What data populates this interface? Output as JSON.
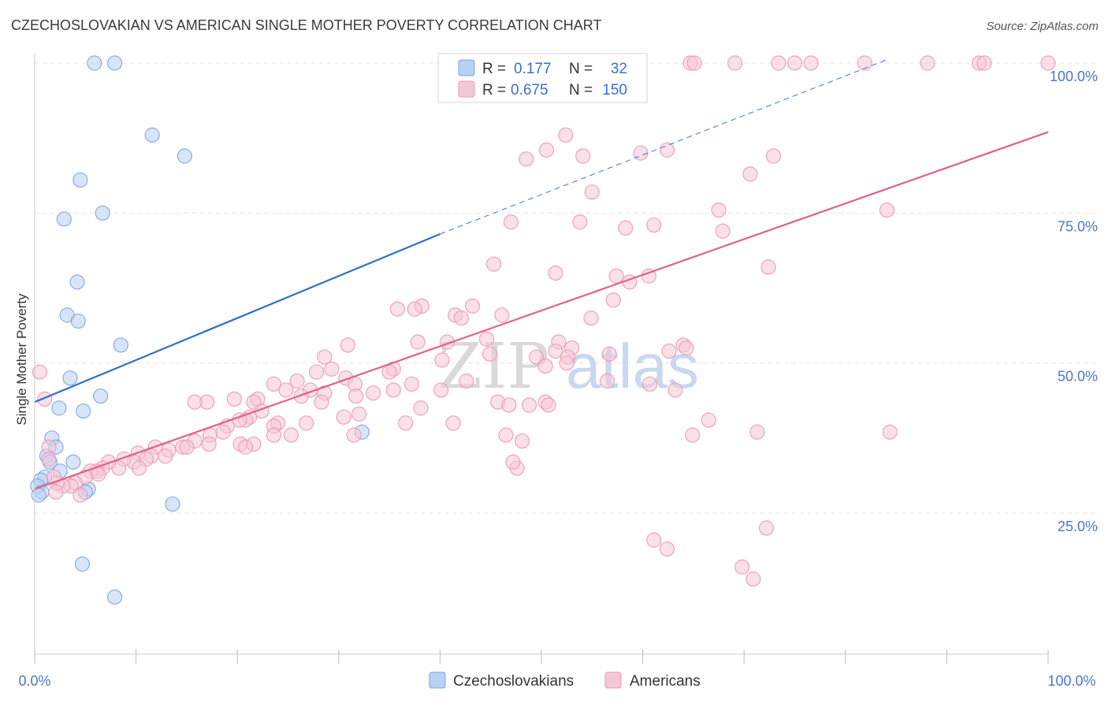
{
  "chart_data": {
    "type": "scatter",
    "title": "CZECHOSLOVAKIAN VS AMERICAN SINGLE MOTHER POVERTY CORRELATION CHART",
    "source": "Source: ZipAtlas.com",
    "xlabel": "",
    "ylabel": "Single Mother Poverty",
    "xlim": [
      0,
      100
    ],
    "ylim": [
      0,
      103
    ],
    "x_tick_labels": [
      "0.0%",
      "100.0%"
    ],
    "y_ticks": [
      25,
      50,
      75,
      100
    ],
    "y_tick_labels": [
      "25.0%",
      "50.0%",
      "75.0%",
      "100.0%"
    ],
    "grid": true,
    "watermark": {
      "zip": "ZIP",
      "atlas": "atlas"
    },
    "legend_stats": [
      {
        "r_label": "R =",
        "r_value": "0.177",
        "n_label": "N =",
        "n_value": "32"
      },
      {
        "r_label": "R =",
        "r_value": "0.675",
        "n_label": "N =",
        "n_value": "150"
      }
    ],
    "series": [
      {
        "name": "Czechoslovakians",
        "color": "#7aa7e0",
        "fill": "#b8d0f2",
        "trend_color": "#2f6fcc",
        "trend": {
          "x0": 0,
          "y0": 43.5,
          "x1": 40,
          "y1": 71.5,
          "dash_to_x": 84,
          "dash_to_y": 100.5
        },
        "points": [
          [
            5.9,
            100
          ],
          [
            7.9,
            100
          ],
          [
            11.6,
            88
          ],
          [
            14.8,
            84.5
          ],
          [
            4.5,
            80.5
          ],
          [
            2.9,
            74
          ],
          [
            6.7,
            75
          ],
          [
            4.2,
            63.5
          ],
          [
            3.2,
            58
          ],
          [
            4.3,
            57
          ],
          [
            8.5,
            53
          ],
          [
            3.5,
            47.5
          ],
          [
            6.5,
            44.5
          ],
          [
            2.4,
            42.5
          ],
          [
            4.8,
            42
          ],
          [
            1.7,
            37.5
          ],
          [
            2.1,
            36
          ],
          [
            1.2,
            34.5
          ],
          [
            1.5,
            33.5
          ],
          [
            3.8,
            33.5
          ],
          [
            2.5,
            32
          ],
          [
            1.0,
            31
          ],
          [
            0.6,
            30.5
          ],
          [
            0.3,
            29.5
          ],
          [
            0.7,
            28.5
          ],
          [
            0.4,
            28
          ],
          [
            5.3,
            29
          ],
          [
            5.0,
            28.5
          ],
          [
            13.6,
            26.5
          ],
          [
            4.7,
            16.5
          ],
          [
            7.9,
            11
          ],
          [
            32.3,
            38.5
          ]
        ]
      },
      {
        "name": "Americans",
        "color": "#ec9ab5",
        "fill": "#f6c7d6",
        "trend_color": "#e0608d",
        "trend": {
          "x0": 0,
          "y0": 29,
          "x1": 100,
          "y1": 88.5
        },
        "points": [
          [
            54.3,
            100
          ],
          [
            55.0,
            100
          ],
          [
            64.7,
            100
          ],
          [
            65.1,
            100
          ],
          [
            69.1,
            100
          ],
          [
            73.4,
            100
          ],
          [
            75.0,
            100
          ],
          [
            76.6,
            100
          ],
          [
            81.9,
            100
          ],
          [
            88.1,
            100
          ],
          [
            93.2,
            100
          ],
          [
            93.7,
            100
          ],
          [
            100,
            100
          ],
          [
            52.4,
            88
          ],
          [
            50.5,
            85.5
          ],
          [
            54.1,
            84.5
          ],
          [
            62.4,
            85.5
          ],
          [
            48.5,
            84
          ],
          [
            59.8,
            85
          ],
          [
            72.9,
            84.5
          ],
          [
            70.6,
            81.5
          ],
          [
            55.0,
            78.5
          ],
          [
            67.5,
            75.5
          ],
          [
            84.1,
            75.5
          ],
          [
            47.0,
            73.5
          ],
          [
            53.8,
            73.5
          ],
          [
            58.3,
            72.5
          ],
          [
            61.1,
            73
          ],
          [
            67.9,
            72
          ],
          [
            45.3,
            66.5
          ],
          [
            72.4,
            66
          ],
          [
            51.4,
            65
          ],
          [
            57.4,
            64.5
          ],
          [
            60.6,
            64.5
          ],
          [
            58.7,
            63.5
          ],
          [
            57.1,
            60.5
          ],
          [
            38.2,
            59.5
          ],
          [
            43.2,
            59.5
          ],
          [
            35.8,
            59
          ],
          [
            37.5,
            59
          ],
          [
            41.5,
            58
          ],
          [
            46.1,
            58
          ],
          [
            42.1,
            57.5
          ],
          [
            54.9,
            57.5
          ],
          [
            40.7,
            53.5
          ],
          [
            44.6,
            54
          ],
          [
            30.9,
            53
          ],
          [
            37.8,
            53.5
          ],
          [
            51.7,
            53.5
          ],
          [
            64.0,
            53
          ],
          [
            53.0,
            52.5
          ],
          [
            51.4,
            52
          ],
          [
            56.7,
            51.5
          ],
          [
            62.6,
            52
          ],
          [
            52.6,
            51
          ],
          [
            28.6,
            51
          ],
          [
            35.4,
            49
          ],
          [
            49.5,
            51
          ],
          [
            40.2,
            50.5
          ],
          [
            44.9,
            51.5
          ],
          [
            50.4,
            49.5
          ],
          [
            52.5,
            50
          ],
          [
            29.3,
            49
          ],
          [
            27.8,
            48.5
          ],
          [
            35.0,
            48.5
          ],
          [
            0.5,
            48.5
          ],
          [
            30.7,
            47.5
          ],
          [
            25.9,
            47
          ],
          [
            31.6,
            46.5
          ],
          [
            37.2,
            46.5
          ],
          [
            42.6,
            47
          ],
          [
            56.5,
            47
          ],
          [
            63.2,
            45.5
          ],
          [
            23.6,
            46.5
          ],
          [
            24.8,
            45.5
          ],
          [
            27.2,
            45.5
          ],
          [
            33.4,
            45
          ],
          [
            35.4,
            45.5
          ],
          [
            40.1,
            45.5
          ],
          [
            28.6,
            45
          ],
          [
            22.0,
            44
          ],
          [
            31.7,
            44.5
          ],
          [
            26.3,
            44.5
          ],
          [
            19.7,
            44
          ],
          [
            21.6,
            43.5
          ],
          [
            28.3,
            43.5
          ],
          [
            17.0,
            43.5
          ],
          [
            15.8,
            43.5
          ],
          [
            1.0,
            44
          ],
          [
            38.1,
            42.5
          ],
          [
            22.4,
            42
          ],
          [
            32.0,
            41.5
          ],
          [
            30.5,
            41
          ],
          [
            21.2,
            41
          ],
          [
            20.8,
            40.5
          ],
          [
            20.2,
            40.5
          ],
          [
            26.8,
            40
          ],
          [
            24.0,
            40
          ],
          [
            19.0,
            39.5
          ],
          [
            23.6,
            39.5
          ],
          [
            36.6,
            40
          ],
          [
            50.4,
            43.5
          ],
          [
            48.8,
            43
          ],
          [
            45.7,
            43.5
          ],
          [
            46.8,
            43
          ],
          [
            50.7,
            43
          ],
          [
            46.5,
            38
          ],
          [
            31.5,
            38
          ],
          [
            23.6,
            38
          ],
          [
            25.3,
            38
          ],
          [
            15.8,
            37
          ],
          [
            17.3,
            38
          ],
          [
            18.6,
            38.5
          ],
          [
            21.6,
            36.5
          ],
          [
            20.3,
            36.5
          ],
          [
            17.2,
            36.5
          ],
          [
            14.6,
            36
          ],
          [
            15.0,
            36
          ],
          [
            13.2,
            35.5
          ],
          [
            11.9,
            36
          ],
          [
            10.2,
            35
          ],
          [
            11.5,
            34.5
          ],
          [
            12.9,
            34.5
          ],
          [
            9.8,
            33.5
          ],
          [
            11.0,
            34
          ],
          [
            10.3,
            32.5
          ],
          [
            8.8,
            34
          ],
          [
            8.3,
            32.5
          ],
          [
            7.3,
            33.5
          ],
          [
            6.7,
            32.5
          ],
          [
            6.1,
            32
          ],
          [
            5.5,
            32
          ],
          [
            6.3,
            31.5
          ],
          [
            5.0,
            31
          ],
          [
            4.0,
            30
          ],
          [
            3.6,
            29.5
          ],
          [
            2.8,
            29.5
          ],
          [
            2.2,
            30
          ],
          [
            2.1,
            28.5
          ],
          [
            4.5,
            28
          ],
          [
            1.9,
            31
          ],
          [
            1.4,
            36
          ],
          [
            1.4,
            34
          ],
          [
            71.3,
            38.5
          ],
          [
            84.4,
            38.5
          ],
          [
            66.5,
            40.5
          ],
          [
            64.9,
            38
          ],
          [
            47.6,
            32.5
          ],
          [
            48.1,
            37
          ],
          [
            72.2,
            22.5
          ],
          [
            61.1,
            20.5
          ],
          [
            62.4,
            19
          ],
          [
            69.8,
            16
          ],
          [
            70.9,
            14
          ],
          [
            47.2,
            33.5
          ],
          [
            41.3,
            40
          ],
          [
            20.8,
            36
          ],
          [
            60.7,
            46.5
          ],
          [
            64.3,
            52.5
          ]
        ]
      }
    ]
  }
}
